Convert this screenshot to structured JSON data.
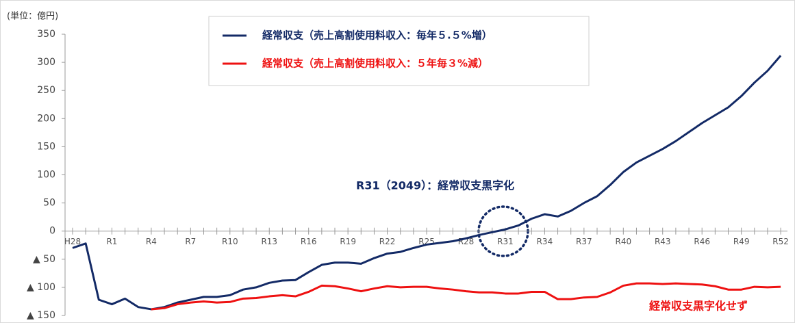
{
  "chart_data": {
    "type": "line",
    "unit_label": "(単位：億円)",
    "categories": [
      "H28",
      null,
      null,
      "R1",
      null,
      null,
      "R4",
      null,
      null,
      "R7",
      null,
      null,
      "R10",
      null,
      null,
      "R13",
      null,
      null,
      "R16",
      null,
      null,
      "R19",
      null,
      null,
      "R22",
      null,
      null,
      "R25",
      null,
      null,
      "R28",
      null,
      null,
      "R31",
      null,
      null,
      "R34",
      null,
      null,
      "R37",
      null,
      null,
      "R40",
      null,
      null,
      "R43",
      null,
      null,
      "R46",
      null,
      null,
      "R49",
      null,
      null,
      "R52"
    ],
    "series": [
      {
        "name": "経常収支（売上高割使用料収入：毎年５.５%増）",
        "color": "#132a66",
        "values": [
          -30,
          -22,
          -122,
          -130,
          -120,
          -135,
          -139,
          -135,
          -127,
          -122,
          -117,
          -117,
          -114,
          -104,
          -100,
          -92,
          -88,
          -87,
          -73,
          -60,
          -56,
          -56,
          -58,
          -48,
          -40,
          -37,
          -30,
          -24,
          -21,
          -18,
          -13,
          -7,
          -2,
          3,
          10,
          22,
          30,
          26,
          36,
          50,
          62,
          82,
          105,
          122,
          134,
          146,
          160,
          176,
          192,
          206,
          220,
          240,
          264,
          285,
          312
        ]
      },
      {
        "name": "経常収支（売上高割使用料収入：５年毎３%減）",
        "color": "#ee1111",
        "values": [
          null,
          null,
          null,
          null,
          null,
          null,
          -139,
          -137,
          -130,
          -127,
          -125,
          -127,
          -126,
          -120,
          -119,
          -116,
          -114,
          -116,
          -108,
          -97,
          -98,
          -102,
          -107,
          -102,
          -98,
          -100,
          -99,
          -99,
          -102,
          -104,
          -107,
          -109,
          -109,
          -111,
          -111,
          -108,
          -108,
          -121,
          -121,
          -118,
          -117,
          -109,
          -97,
          -93,
          -93,
          -94,
          -93,
          -94,
          -95,
          -98,
          -104,
          -104,
          -99,
          -100,
          -99
        ]
      }
    ],
    "ylim": [
      -150,
      350
    ],
    "yticks": [
      {
        "value": -150,
        "label": "▲ 150"
      },
      {
        "value": -100,
        "label": "▲ 100"
      },
      {
        "value": -50,
        "label": "▲ 50"
      },
      0,
      50,
      100,
      150,
      200,
      250,
      300,
      350
    ],
    "annotations": [
      "R31（2049）：経常収支黒字化",
      "経常収支黒字化せず"
    ],
    "legend": "top"
  }
}
